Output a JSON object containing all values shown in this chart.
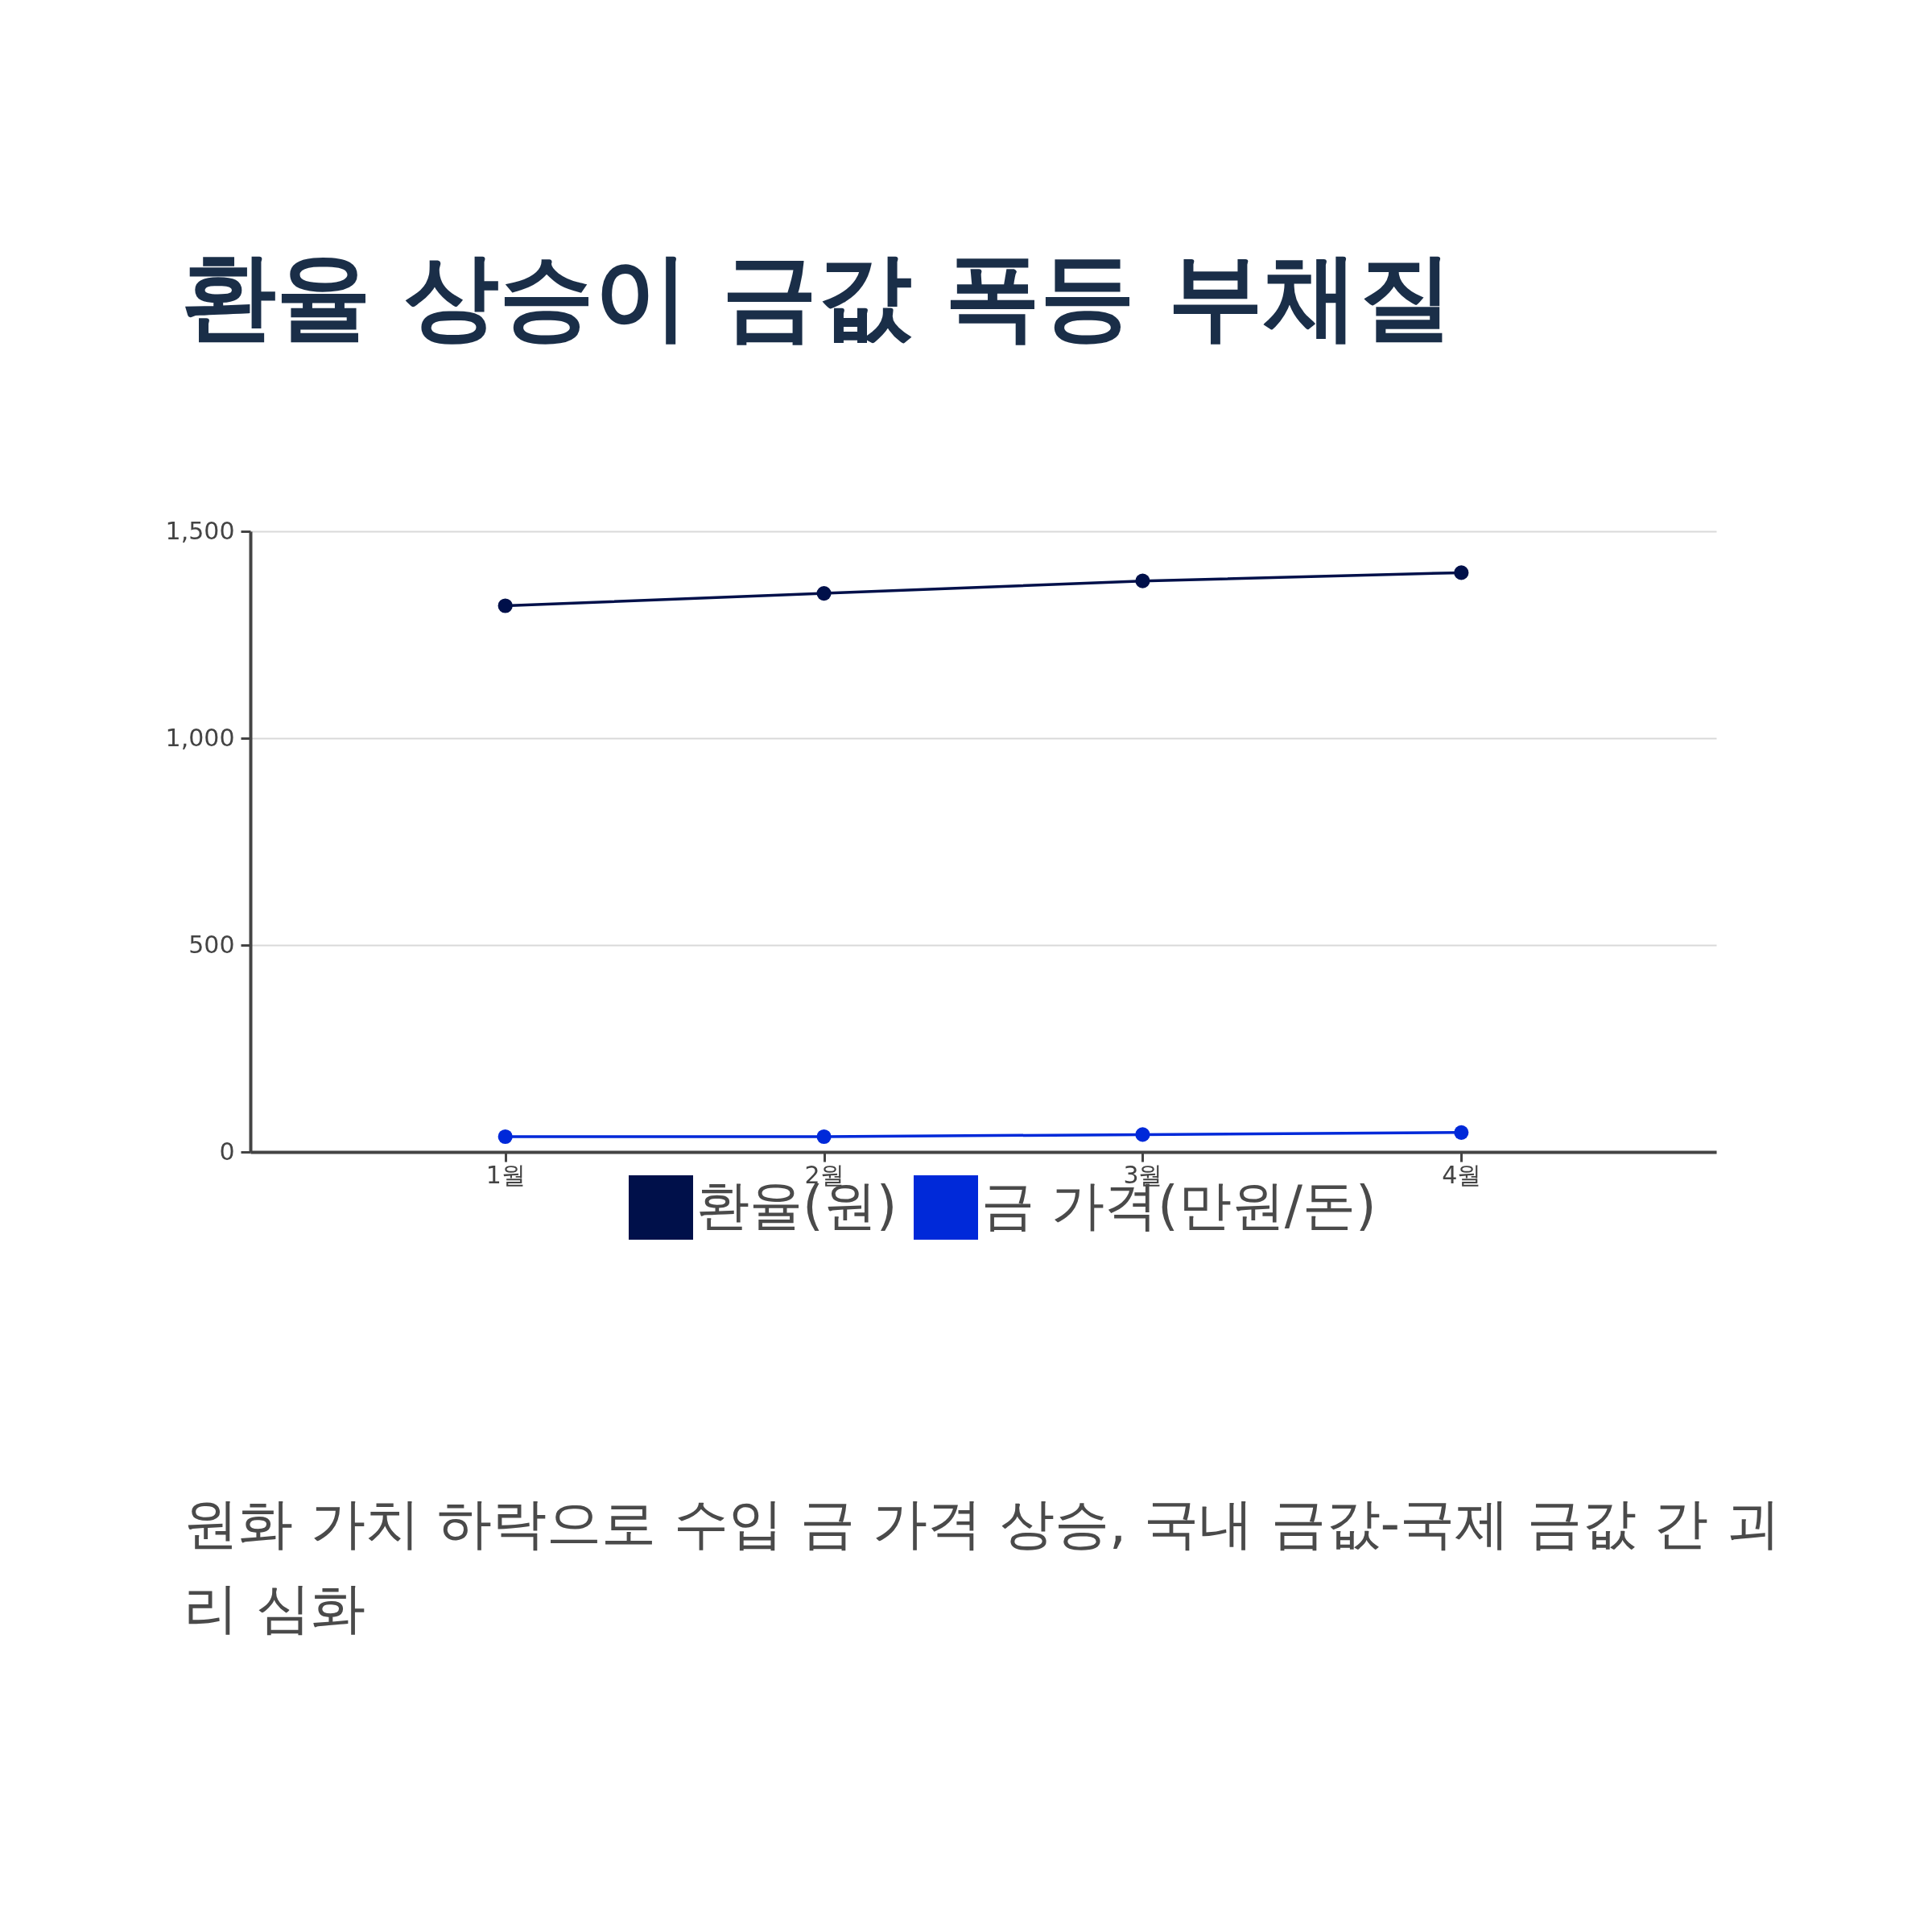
{
  "chart_data": {
    "type": "line",
    "title": "환율 상승이 금값 폭등 부채질",
    "categories": [
      "1월",
      "2월",
      "3월",
      "4월"
    ],
    "series": [
      {
        "name": "환율(원)",
        "color": "#00104a",
        "values": [
          1320,
          1350,
          1380,
          1400
        ]
      },
      {
        "name": "금 가격(만원/돈)",
        "color": "#0029d9",
        "values": [
          37,
          37,
          42,
          47
        ]
      }
    ],
    "ylim": [
      0,
      1500
    ],
    "yticks": [
      {
        "value": 0,
        "label": "0"
      },
      {
        "value": 500,
        "label": "500"
      },
      {
        "value": 1000,
        "label": "1,000"
      },
      {
        "value": 1500,
        "label": "1,500"
      }
    ],
    "grid": "y",
    "legend": "bottom",
    "marker": "circle",
    "line_style": "solid",
    "annotations": [
      "원화 가치 하락으로 수입 금 가격 상승, 국내 금값-국제 금값 간 괴리 심화"
    ]
  }
}
